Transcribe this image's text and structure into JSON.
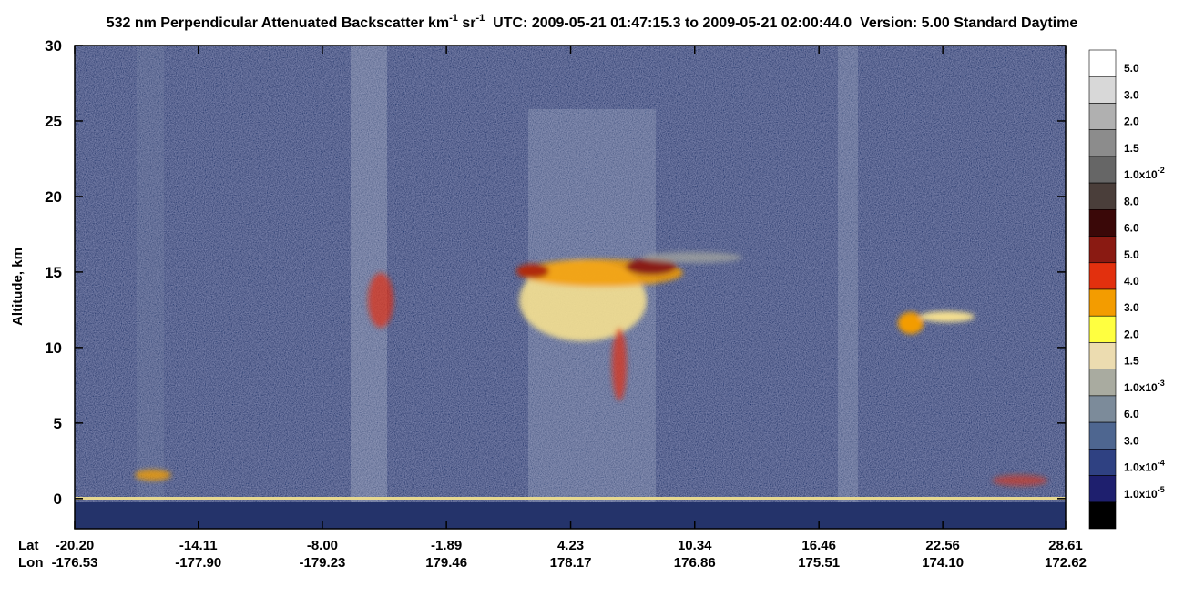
{
  "chart_data": {
    "type": "curtain",
    "title": [
      "532 nm Perpendicular Attenuated Backscatter km",
      "-1",
      " sr",
      "-1",
      "  UTC: 2009-05-21 01:47:15.3 to 2009-05-21 02:00:44.0  Version: 5.00 Standard Daytime"
    ],
    "ylabel": "Altitude, km",
    "ylim": [
      -2,
      30
    ],
    "yticks": [
      0,
      5,
      10,
      15,
      20,
      25,
      30
    ],
    "xlim": [
      -20.2,
      28.61
    ],
    "lat_label": "Lat",
    "lon_label": "Lon",
    "xticks": [
      {
        "value": -20.2,
        "label": "-20.20"
      },
      {
        "value": -14.11,
        "label": "-14.11"
      },
      {
        "value": -8.0,
        "label": "-8.00"
      },
      {
        "value": -1.89,
        "label": "-1.89"
      },
      {
        "value": 4.23,
        "label": "4.23"
      },
      {
        "value": 10.34,
        "label": "10.34"
      },
      {
        "value": 16.46,
        "label": "16.46"
      },
      {
        "value": 22.56,
        "label": "22.56"
      },
      {
        "value": 28.61,
        "label": "28.61"
      }
    ],
    "lon_ticks": [
      "-176.53",
      "-177.90",
      "-179.23",
      "179.46",
      "178.17",
      "176.86",
      "175.51",
      "174.10",
      "172.62"
    ],
    "colorbar": {
      "colors": [
        "#ffffff",
        "#d8d8d8",
        "#b0b0b0",
        "#8c8c8c",
        "#666666",
        "#4a3e3a",
        "#3a0808",
        "#8a1a12",
        "#e2300e",
        "#f39c00",
        "#ffff40",
        "#ecdcb0",
        "#a9aba0",
        "#7c8b9a",
        "#4e6690",
        "#2f4182",
        "#1e1f6e",
        "#000000"
      ],
      "labels": [
        {
          "text": "5.0"
        },
        {
          "text": "3.0"
        },
        {
          "text": "2.0"
        },
        {
          "text": "1.5"
        },
        {
          "text": "1.0x10",
          "sup": "-2"
        },
        {
          "text": "8.0"
        },
        {
          "text": "6.0"
        },
        {
          "text": "5.0"
        },
        {
          "text": "4.0"
        },
        {
          "text": "3.0"
        },
        {
          "text": "2.0"
        },
        {
          "text": "1.5"
        },
        {
          "text": "1.0x10",
          "sup": "-3"
        },
        {
          "text": "6.0"
        },
        {
          "text": "3.0"
        },
        {
          "text": "1.0x10",
          "sup": "-4"
        },
        {
          "text": "1.0x10",
          "sup": "-5"
        },
        null
      ]
    }
  }
}
